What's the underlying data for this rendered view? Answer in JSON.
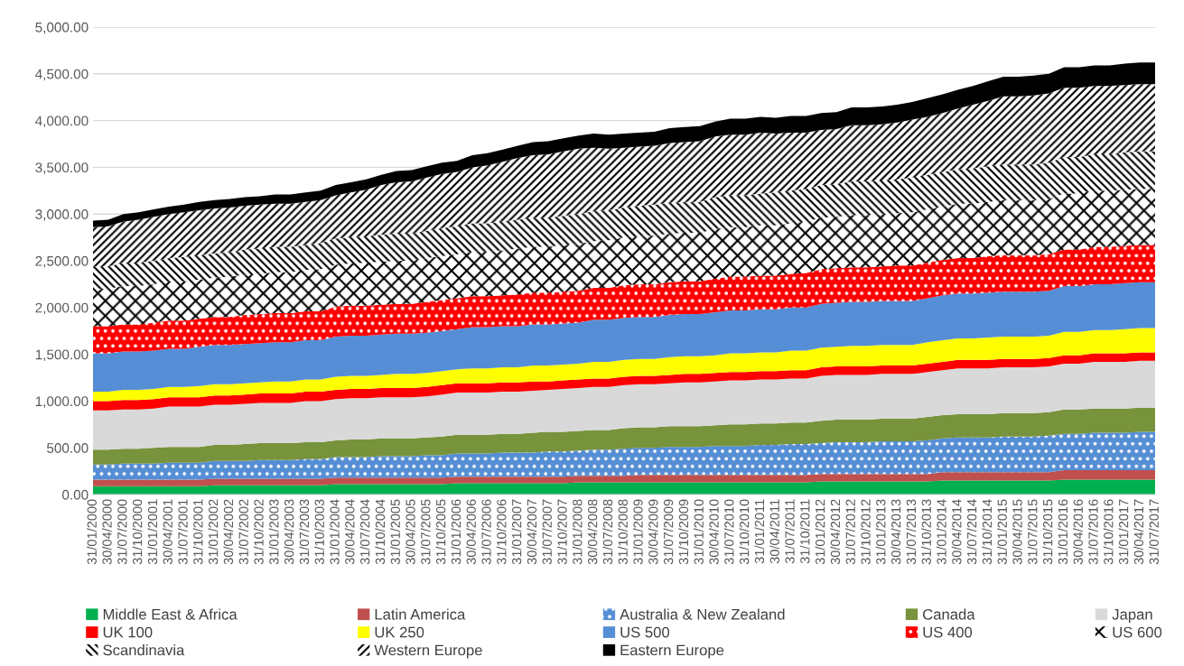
{
  "chart_data": {
    "type": "area",
    "stacked": true,
    "categories": [
      "31/01/2000",
      "30/04/2000",
      "31/07/2000",
      "31/10/2000",
      "31/01/2001",
      "30/04/2001",
      "31/07/2001",
      "31/10/2001",
      "31/01/2002",
      "30/04/2002",
      "31/07/2002",
      "31/10/2002",
      "31/01/2003",
      "30/04/2003",
      "31/07/2003",
      "31/10/2003",
      "31/01/2004",
      "30/04/2004",
      "31/07/2004",
      "31/10/2004",
      "31/01/2005",
      "30/04/2005",
      "31/07/2005",
      "31/10/2005",
      "31/01/2006",
      "30/04/2006",
      "31/07/2006",
      "31/10/2006",
      "31/01/2007",
      "30/04/2007",
      "31/07/2007",
      "31/10/2007",
      "31/01/2008",
      "30/04/2008",
      "31/07/2008",
      "31/10/2008",
      "31/01/2009",
      "30/04/2009",
      "31/07/2009",
      "31/10/2009",
      "31/01/2010",
      "30/04/2010",
      "31/07/2010",
      "31/10/2010",
      "31/01/2011",
      "30/04/2011",
      "31/07/2011",
      "31/10/2011",
      "31/01/2012",
      "30/04/2012",
      "31/07/2012",
      "31/10/2012",
      "31/01/2013",
      "30/04/2013",
      "31/07/2013",
      "31/10/2013",
      "31/01/2014",
      "30/04/2014",
      "31/07/2014",
      "31/10/2014",
      "31/01/2015",
      "30/04/2015",
      "31/07/2015",
      "31/10/2015",
      "31/01/2016",
      "30/04/2016",
      "31/07/2016",
      "31/10/2016",
      "31/01/2017",
      "30/04/2017",
      "31/07/2017"
    ],
    "series": [
      {
        "name": "Middle East & Africa",
        "color": "#00b050",
        "values": [
          90,
          90,
          90,
          90,
          90,
          90,
          90,
          90,
          100,
          100,
          100,
          100,
          100,
          100,
          100,
          100,
          110,
          110,
          110,
          110,
          110,
          110,
          110,
          110,
          120,
          120,
          120,
          120,
          120,
          120,
          120,
          120,
          130,
          130,
          130,
          130,
          130,
          130,
          130,
          130,
          130,
          130,
          130,
          130,
          130,
          130,
          130,
          130,
          140,
          140,
          140,
          140,
          140,
          140,
          140,
          140,
          150,
          150,
          150,
          150,
          150,
          150,
          150,
          150,
          160,
          160,
          160,
          160,
          160,
          160,
          160
        ]
      },
      {
        "name": "Latin America",
        "color": "#c0504d",
        "values": [
          70,
          70,
          70,
          70,
          70,
          70,
          70,
          70,
          70,
          70,
          70,
          70,
          70,
          70,
          70,
          70,
          70,
          70,
          70,
          70,
          70,
          70,
          70,
          70,
          70,
          70,
          70,
          70,
          70,
          70,
          70,
          70,
          70,
          70,
          70,
          70,
          80,
          80,
          80,
          80,
          80,
          80,
          80,
          80,
          80,
          80,
          80,
          80,
          80,
          80,
          80,
          80,
          80,
          80,
          80,
          80,
          90,
          90,
          90,
          90,
          90,
          90,
          90,
          90,
          100,
          100,
          100,
          100,
          100,
          100,
          100
        ]
      },
      {
        "name": "Australia & New Zealand",
        "color": "#558ed5",
        "values": [
          160,
          160,
          170,
          170,
          170,
          180,
          180,
          180,
          190,
          190,
          190,
          200,
          200,
          200,
          210,
          210,
          220,
          220,
          220,
          230,
          230,
          230,
          240,
          240,
          250,
          250,
          250,
          260,
          260,
          260,
          270,
          270,
          270,
          280,
          280,
          290,
          290,
          290,
          300,
          300,
          300,
          310,
          310,
          310,
          320,
          320,
          330,
          330,
          330,
          340,
          340,
          340,
          350,
          350,
          350,
          360,
          360,
          370,
          370,
          370,
          380,
          380,
          380,
          390,
          390,
          390,
          400,
          400,
          400,
          410,
          410
        ]
      },
      {
        "name": "Canada",
        "color": "#77933c",
        "values": [
          160,
          160,
          160,
          160,
          170,
          170,
          170,
          170,
          170,
          170,
          180,
          180,
          180,
          180,
          180,
          180,
          180,
          190,
          190,
          190,
          190,
          190,
          190,
          200,
          200,
          200,
          200,
          200,
          200,
          210,
          210,
          210,
          210,
          210,
          210,
          220,
          220,
          220,
          220,
          220,
          220,
          220,
          230,
          230,
          230,
          230,
          230,
          230,
          240,
          240,
          240,
          240,
          240,
          240,
          240,
          250,
          250,
          250,
          250,
          250,
          250,
          250,
          250,
          250,
          260,
          260,
          260,
          260,
          260,
          260,
          260
        ]
      },
      {
        "name": "Japan",
        "color": "#d9d9d9",
        "values": [
          420,
          420,
          420,
          420,
          420,
          430,
          430,
          430,
          430,
          430,
          430,
          430,
          430,
          430,
          440,
          440,
          440,
          440,
          440,
          440,
          440,
          440,
          440,
          450,
          450,
          450,
          450,
          450,
          450,
          450,
          450,
          460,
          460,
          460,
          460,
          460,
          460,
          460,
          460,
          470,
          470,
          470,
          470,
          470,
          470,
          470,
          470,
          470,
          480,
          480,
          480,
          480,
          480,
          480,
          480,
          480,
          480,
          490,
          490,
          490,
          490,
          490,
          490,
          490,
          490,
          490,
          500,
          500,
          500,
          500,
          500
        ]
      },
      {
        "name": "UK 100",
        "color": "#ff0000",
        "values": [
          100,
          100,
          100,
          100,
          100,
          100,
          100,
          100,
          100,
          100,
          100,
          100,
          100,
          100,
          100,
          100,
          100,
          100,
          100,
          100,
          100,
          100,
          100,
          100,
          100,
          100,
          100,
          100,
          100,
          100,
          90,
          90,
          90,
          90,
          90,
          90,
          90,
          90,
          90,
          90,
          90,
          90,
          90,
          90,
          90,
          90,
          90,
          90,
          90,
          90,
          90,
          90,
          90,
          90,
          90,
          90,
          90,
          90,
          90,
          90,
          90,
          90,
          90,
          90,
          90,
          90,
          90,
          90,
          90,
          90,
          90
        ]
      },
      {
        "name": "UK 250",
        "color": "#ffff00",
        "values": [
          100,
          100,
          110,
          110,
          110,
          110,
          110,
          120,
          120,
          120,
          120,
          120,
          130,
          130,
          130,
          130,
          140,
          140,
          140,
          140,
          150,
          150,
          150,
          150,
          150,
          160,
          160,
          160,
          160,
          170,
          170,
          170,
          170,
          180,
          180,
          180,
          180,
          180,
          190,
          190,
          190,
          190,
          200,
          200,
          200,
          200,
          210,
          210,
          210,
          210,
          220,
          220,
          220,
          220,
          220,
          230,
          230,
          230,
          230,
          240,
          240,
          240,
          240,
          240,
          250,
          250,
          250,
          250,
          260,
          260,
          260
        ]
      },
      {
        "name": "US 500",
        "color": "#558ed5",
        "values": [
          410,
          410,
          410,
          410,
          410,
          410,
          410,
          420,
          420,
          420,
          420,
          420,
          420,
          420,
          420,
          420,
          430,
          430,
          430,
          430,
          430,
          430,
          430,
          430,
          430,
          440,
          440,
          440,
          440,
          440,
          440,
          440,
          440,
          450,
          450,
          450,
          450,
          450,
          450,
          450,
          450,
          460,
          460,
          460,
          460,
          460,
          460,
          460,
          470,
          470,
          470,
          470,
          470,
          470,
          470,
          470,
          480,
          480,
          480,
          480,
          480,
          480,
          480,
          480,
          490,
          490,
          490,
          490,
          490,
          490,
          490
        ]
      },
      {
        "name": "US 400",
        "color": "#ff0000",
        "values": [
          290,
          290,
          290,
          290,
          300,
          300,
          300,
          300,
          300,
          300,
          310,
          310,
          310,
          310,
          310,
          310,
          320,
          320,
          320,
          320,
          320,
          320,
          330,
          330,
          330,
          330,
          330,
          330,
          340,
          340,
          340,
          340,
          340,
          340,
          340,
          350,
          350,
          350,
          350,
          350,
          350,
          360,
          360,
          360,
          360,
          360,
          360,
          370,
          370,
          370,
          370,
          370,
          370,
          380,
          380,
          380,
          380,
          380,
          380,
          390,
          390,
          390,
          390,
          390,
          390,
          390,
          400,
          400,
          400,
          400,
          400
        ]
      },
      {
        "name": "US 600",
        "color": "#ffffff",
        "values": [
          400,
          400,
          410,
          410,
          410,
          420,
          420,
          420,
          420,
          430,
          430,
          430,
          440,
          440,
          440,
          450,
          450,
          450,
          460,
          460,
          460,
          460,
          470,
          470,
          470,
          480,
          480,
          480,
          490,
          490,
          490,
          500,
          500,
          500,
          510,
          510,
          510,
          520,
          520,
          520,
          520,
          530,
          530,
          530,
          540,
          540,
          540,
          550,
          550,
          550,
          560,
          560,
          560,
          560,
          570,
          570,
          570,
          580,
          580,
          580,
          590,
          590,
          590,
          590,
          600,
          600,
          600,
          600,
          600,
          600,
          600
        ]
      },
      {
        "name": "Scandinavia",
        "color": "#ffffff",
        "values": [
          240,
          240,
          250,
          250,
          250,
          250,
          260,
          260,
          260,
          260,
          270,
          270,
          270,
          270,
          270,
          280,
          280,
          280,
          280,
          290,
          290,
          290,
          290,
          300,
          300,
          300,
          300,
          310,
          310,
          310,
          310,
          310,
          320,
          320,
          320,
          320,
          330,
          330,
          330,
          330,
          330,
          340,
          340,
          340,
          340,
          350,
          350,
          350,
          350,
          350,
          360,
          360,
          360,
          360,
          370,
          370,
          370,
          370,
          380,
          380,
          380,
          380,
          380,
          390,
          390,
          390,
          390,
          390,
          400,
          400,
          400
        ]
      },
      {
        "name": "Western Europe",
        "color": "#ffffff",
        "values": [
          420,
          430,
          440,
          460,
          470,
          470,
          480,
          480,
          480,
          480,
          470,
          470,
          460,
          460,
          460,
          460,
          460,
          480,
          500,
          530,
          550,
          560,
          570,
          580,
          580,
          600,
          620,
          640,
          660,
          670,
          680,
          690,
          700,
          680,
          660,
          640,
          630,
          630,
          640,
          640,
          650,
          650,
          650,
          650,
          650,
          630,
          620,
          600,
          590,
          590,
          600,
          600,
          600,
          610,
          620,
          620,
          630,
          650,
          680,
          700,
          730,
          730,
          740,
          740,
          740,
          740,
          730,
          730,
          720,
          720,
          720
        ]
      },
      {
        "name": "Eastern Europe",
        "color": "#000000",
        "values": [
          70,
          70,
          80,
          80,
          80,
          80,
          80,
          90,
          90,
          90,
          90,
          90,
          100,
          100,
          100,
          100,
          110,
          110,
          110,
          110,
          120,
          120,
          120,
          120,
          120,
          130,
          130,
          130,
          130,
          140,
          140,
          140,
          140,
          150,
          150,
          150,
          150,
          150,
          160,
          160,
          160,
          160,
          170,
          170,
          170,
          170,
          180,
          180,
          180,
          180,
          190,
          190,
          190,
          190,
          190,
          200,
          200,
          200,
          200,
          210,
          210,
          210,
          210,
          210,
          220,
          220,
          220,
          220,
          230,
          230,
          230
        ]
      }
    ],
    "ylim": [
      0,
      5000
    ],
    "yticks": [
      {
        "value": 0,
        "label": "0.00"
      },
      {
        "value": 500,
        "label": "500.00"
      },
      {
        "value": 1000,
        "label": "1,000.00"
      },
      {
        "value": 1500,
        "label": "1,500.00"
      },
      {
        "value": 2000,
        "label": "2,000.00"
      },
      {
        "value": 2500,
        "label": "2,500.00"
      },
      {
        "value": 3000,
        "label": "3,000.00"
      },
      {
        "value": 3500,
        "label": "3,500.00"
      },
      {
        "value": 4000,
        "label": "4,000.00"
      },
      {
        "value": 4500,
        "label": "4,500.00"
      },
      {
        "value": 5000,
        "label": "5,000.00"
      }
    ],
    "grid": "y",
    "legend": "bottom"
  }
}
